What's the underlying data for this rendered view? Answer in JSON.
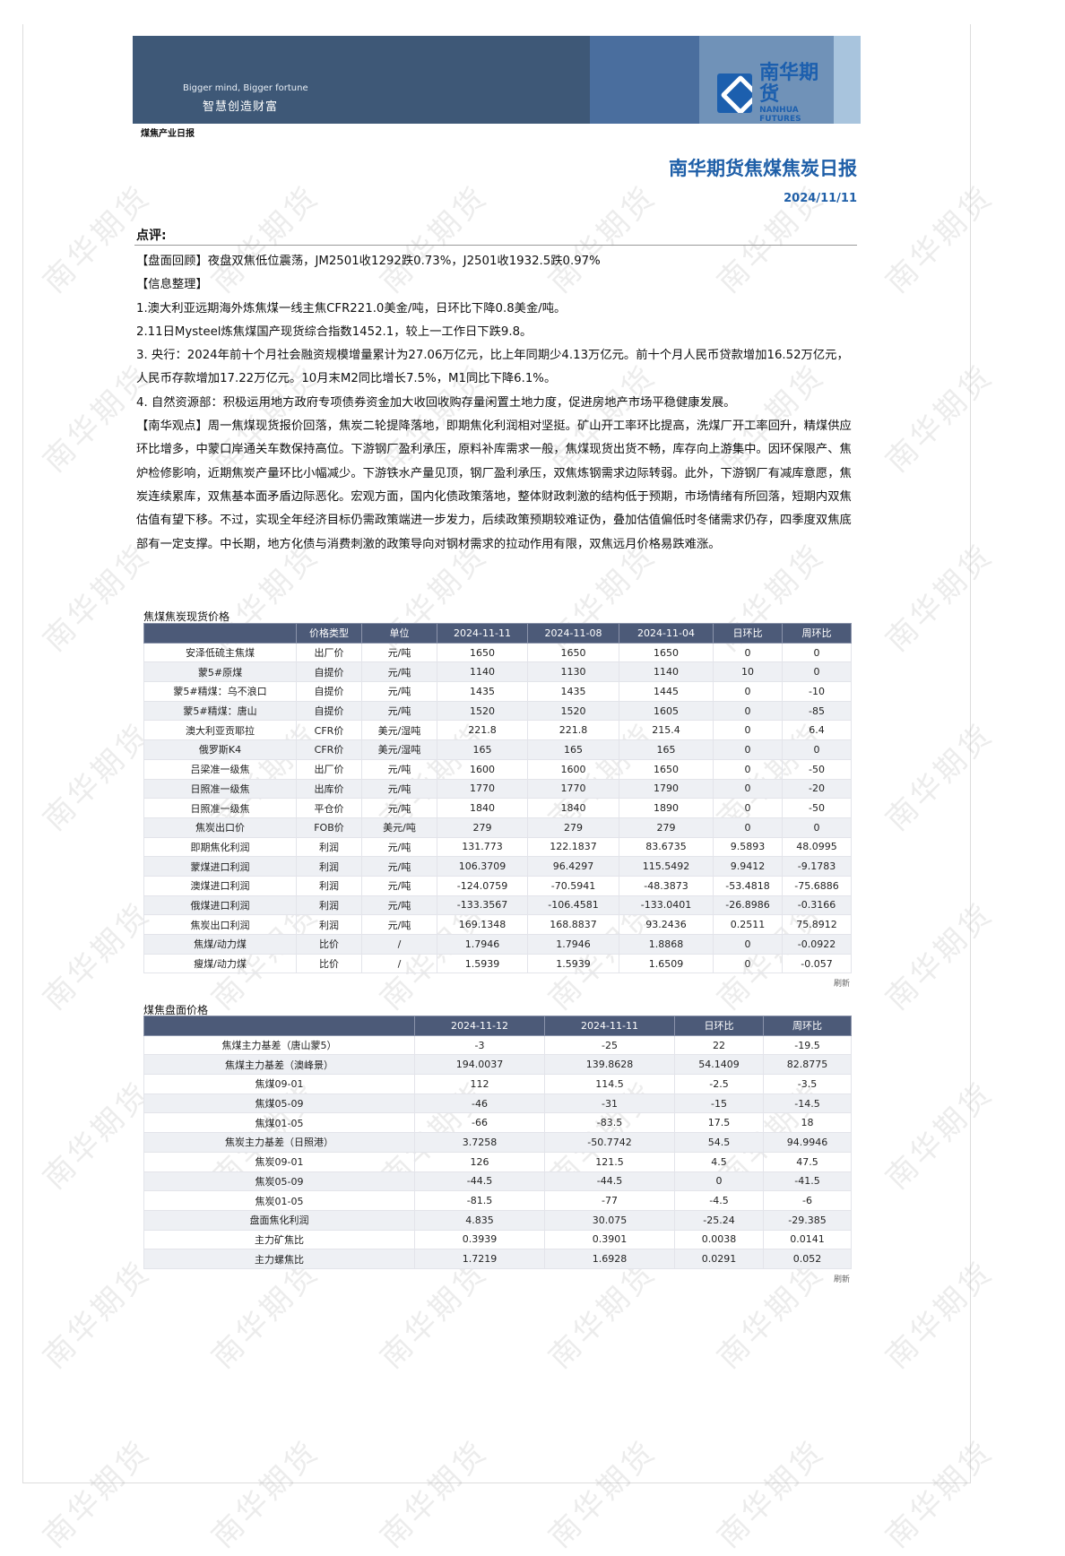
{
  "watermark": "南华期货",
  "banner": {
    "slogan_en": "Bigger mind, Bigger fortune",
    "slogan_cn": "智慧创造财富",
    "logo_cn": "南华期货",
    "logo_en": "NANHUA FUTURES"
  },
  "section_tag": "煤焦产业日报",
  "title": "南华期货焦煤焦炭日报",
  "date": "2024/11/11",
  "comment_head": "点评:",
  "paragraphs": [
    "【盘面回顾】夜盘双焦低位震荡，JM2501收1292跌0.73%，J2501收1932.5跌0.97%",
    "【信息整理】",
    "1.澳大利亚远期海外炼焦煤一线主焦CFR221.0美金/吨，日环比下降0.8美金/吨。",
    "2.11日Mysteel炼焦煤国产现货综合指数1452.1，较上一工作日下跌9.8。",
    "3. 央行：2024年前十个月社会融资规模增量累计为27.06万亿元，比上年同期少4.13万亿元。前十个月人民币贷款增加16.52万亿元，人民币存款增加17.22万亿元。10月末M2同比增长7.5%，M1同比下降6.1%。",
    "4. 自然资源部：积极运用地方政府专项债券资金加大收回收购存量闲置土地力度，促进房地产市场平稳健康发展。",
    "【南华观点】周一焦煤现货报价回落，焦炭二轮提降落地，即期焦化利润相对坚挺。矿山开工率环比提高，洗煤厂开工率回升，精煤供应环比增多，中蒙口岸通关车数保持高位。下游钢厂盈利承压，原料补库需求一般，焦煤现货出货不畅，库存向上游集中。因环保限产、焦炉检修影响，近期焦炭产量环比小幅减少。下游铁水产量见顶，钢厂盈利承压，双焦炼钢需求边际转弱。此外，下游钢厂有减库意愿，焦炭连续累库，双焦基本面矛盾边际恶化。宏观方面，国内化债政策落地，整体财政刺激的结构低于预期，市场情绪有所回落，短期内双焦估值有望下移。不过，实现全年经济目标仍需政策端进一步发力，后续政策预期较难证伪，叠加估值偏低时冬储需求仍存，四季度双焦底部有一定支撑。中长期，地方化债与消费刺激的政策导向对钢材需求的拉动作用有限，双焦远月价格易跌难涨。"
  ],
  "spot_table": {
    "caption": "焦煤焦炭现货价格",
    "headers": [
      "",
      "价格类型",
      "单位",
      "2024-11-11",
      "2024-11-08",
      "2024-11-04",
      "日环比",
      "周环比"
    ],
    "rows": [
      [
        "安泽低硫主焦煤",
        "出厂价",
        "元/吨",
        "1650",
        "1650",
        "1650",
        "0",
        "0"
      ],
      [
        "蒙5#原煤",
        "自提价",
        "元/吨",
        "1140",
        "1130",
        "1140",
        "10",
        "0"
      ],
      [
        "蒙5#精煤：乌不浪口",
        "自提价",
        "元/吨",
        "1435",
        "1435",
        "1445",
        "0",
        "-10"
      ],
      [
        "蒙5#精煤：唐山",
        "自提价",
        "元/吨",
        "1520",
        "1520",
        "1605",
        "0",
        "-85"
      ],
      [
        "澳大利亚贡耶拉",
        "CFR价",
        "美元/湿吨",
        "221.8",
        "221.8",
        "215.4",
        "0",
        "6.4"
      ],
      [
        "俄罗斯K4",
        "CFR价",
        "美元/湿吨",
        "165",
        "165",
        "165",
        "0",
        "0"
      ],
      [
        "吕梁准一级焦",
        "出厂价",
        "元/吨",
        "1600",
        "1600",
        "1650",
        "0",
        "-50"
      ],
      [
        "日照准一级焦",
        "出库价",
        "元/吨",
        "1770",
        "1770",
        "1790",
        "0",
        "-20"
      ],
      [
        "日照准一级焦",
        "平仓价",
        "元/吨",
        "1840",
        "1840",
        "1890",
        "0",
        "-50"
      ],
      [
        "焦炭出口价",
        "FOB价",
        "美元/吨",
        "279",
        "279",
        "279",
        "0",
        "0"
      ],
      [
        "即期焦化利润",
        "利润",
        "元/吨",
        "131.773",
        "122.1837",
        "83.6735",
        "9.5893",
        "48.0995"
      ],
      [
        "蒙煤进口利润",
        "利润",
        "元/吨",
        "106.3709",
        "96.4297",
        "115.5492",
        "9.9412",
        "-9.1783"
      ],
      [
        "澳煤进口利润",
        "利润",
        "元/吨",
        "-124.0759",
        "-70.5941",
        "-48.3873",
        "-53.4818",
        "-75.6886"
      ],
      [
        "俄煤进口利润",
        "利润",
        "元/吨",
        "-133.3567",
        "-106.4581",
        "-133.0401",
        "-26.8986",
        "-0.3166"
      ],
      [
        "焦炭出口利润",
        "利润",
        "元/吨",
        "169.1348",
        "168.8837",
        "93.2436",
        "0.2511",
        "75.8912"
      ],
      [
        "焦煤/动力煤",
        "比价",
        "/",
        "1.7946",
        "1.7946",
        "1.8868",
        "0",
        "-0.0922"
      ],
      [
        "瘦煤/动力煤",
        "比价",
        "/",
        "1.5939",
        "1.5939",
        "1.6509",
        "0",
        "-0.057"
      ]
    ],
    "refresh": "刷新"
  },
  "futures_table": {
    "caption": "煤焦盘面价格",
    "headers": [
      "",
      "2024-11-12",
      "2024-11-11",
      "日环比",
      "周环比"
    ],
    "rows": [
      [
        "焦煤主力基差（唐山蒙5）",
        "-3",
        "-25",
        "22",
        "-19.5"
      ],
      [
        "焦煤主力基差（澳峰景）",
        "194.0037",
        "139.8628",
        "54.1409",
        "82.8775"
      ],
      [
        "焦煤09-01",
        "112",
        "114.5",
        "-2.5",
        "-3.5"
      ],
      [
        "焦煤05-09",
        "-46",
        "-31",
        "-15",
        "-14.5"
      ],
      [
        "焦煤01-05",
        "-66",
        "-83.5",
        "17.5",
        "18"
      ],
      [
        "焦炭主力基差（日照港）",
        "3.7258",
        "-50.7742",
        "54.5",
        "94.9946"
      ],
      [
        "焦炭09-01",
        "126",
        "121.5",
        "4.5",
        "47.5"
      ],
      [
        "焦炭05-09",
        "-44.5",
        "-44.5",
        "0",
        "-41.5"
      ],
      [
        "焦炭01-05",
        "-81.5",
        "-77",
        "-4.5",
        "-6"
      ],
      [
        "盘面焦化利润",
        "4.835",
        "30.075",
        "-25.24",
        "-29.385"
      ],
      [
        "主力矿焦比",
        "0.3939",
        "0.3901",
        "0.0038",
        "0.0141"
      ],
      [
        "主力螺焦比",
        "1.7219",
        "1.6928",
        "0.0291",
        "0.052"
      ]
    ],
    "refresh": "刷新"
  }
}
